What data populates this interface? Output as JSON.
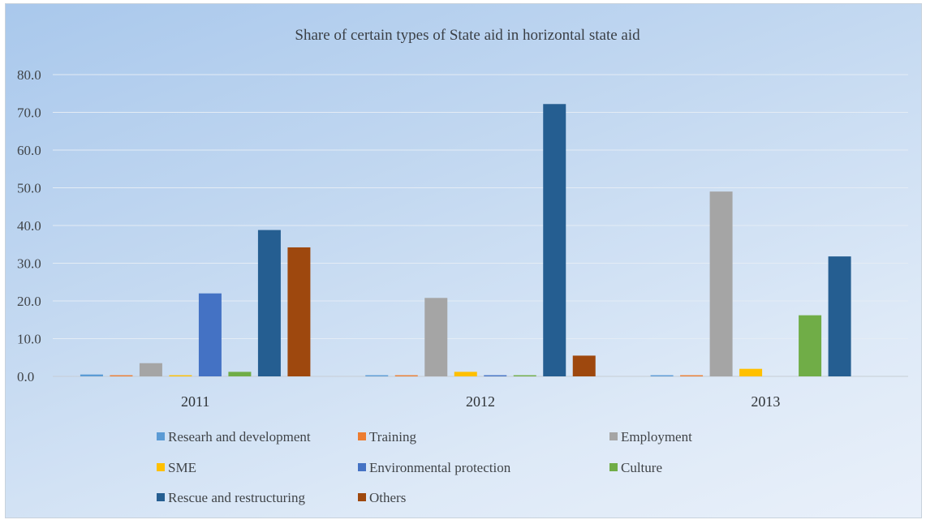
{
  "chart_data": {
    "type": "bar",
    "title": "Share of certain types of State aid in horizontal state aid",
    "categories": [
      "2011",
      "2012",
      "2013"
    ],
    "ylim": [
      0,
      80
    ],
    "yticks": [
      "0.0",
      "10.0",
      "20.0",
      "30.0",
      "40.0",
      "50.0",
      "60.0",
      "70.0",
      "80.0"
    ],
    "grid": true,
    "legend_position": "bottom",
    "series": [
      {
        "name": "Researh and development",
        "color": "#5b9bd5",
        "values": [
          0.5,
          0.3,
          0.3
        ]
      },
      {
        "name": "Training",
        "color": "#ed7d31",
        "values": [
          0.3,
          0.3,
          0.3
        ]
      },
      {
        "name": "Employment",
        "color": "#a5a5a5",
        "values": [
          3.5,
          20.8,
          49.0
        ]
      },
      {
        "name": "SME",
        "color": "#ffc000",
        "values": [
          0.3,
          1.2,
          2.0
        ]
      },
      {
        "name": "Environmental protection",
        "color": "#4472c4",
        "values": [
          22.0,
          0.3,
          0.0
        ]
      },
      {
        "name": "Culture",
        "color": "#70ad47",
        "values": [
          1.2,
          0.3,
          16.2
        ]
      },
      {
        "name": "Rescue and restructuring",
        "color": "#255e91",
        "values": [
          38.8,
          72.2,
          31.8
        ]
      },
      {
        "name": "Others",
        "color": "#9e480e",
        "values": [
          34.2,
          5.5,
          0.0
        ]
      }
    ]
  }
}
